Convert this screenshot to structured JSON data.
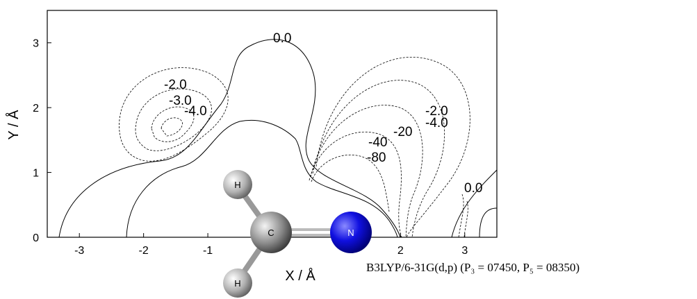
{
  "chart_data": {
    "type": "contour",
    "xlabel": "X / Å",
    "ylabel": "Y / Å",
    "xlim": [
      -3.5,
      3.5
    ],
    "xticks": [
      -3,
      -2,
      -1,
      2,
      3
    ],
    "ylim": [
      0,
      3.5
    ],
    "yticks": [
      0,
      1,
      2,
      3
    ],
    "contour_labels": [
      "0.0",
      "-2.0",
      "-3.0",
      "-4.0",
      "-2.0",
      "-4.0",
      "-20",
      "-40",
      "-80",
      "0.0"
    ],
    "atoms": [
      "H",
      "C",
      "N",
      "H"
    ],
    "caption": "B3LYP/6-31G(d,p) (P₃ = 07450, P₅ = 08350)"
  }
}
